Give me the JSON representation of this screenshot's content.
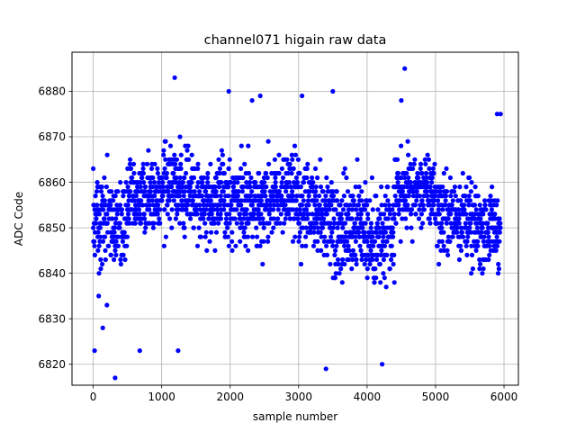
{
  "chart_data": {
    "type": "scatter",
    "title": "channel071 higain raw data",
    "xlabel": "sample number",
    "ylabel": "ADC Code",
    "xlim": [
      -310,
      6210
    ],
    "ylim": [
      6815.4,
      6888.6
    ],
    "xticks": [
      "0",
      "1000",
      "2000",
      "3000",
      "4000",
      "5000",
      "6000"
    ],
    "xtick_values": [
      0,
      1000,
      2000,
      3000,
      4000,
      5000,
      6000
    ],
    "yticks": [
      "6820",
      "6830",
      "6840",
      "6850",
      "6860",
      "6870",
      "6880"
    ],
    "ytick_values": [
      6820,
      6830,
      6840,
      6850,
      6860,
      6870,
      6880
    ],
    "grid": true,
    "marker_color": "#0000ff",
    "series": [
      {
        "name": "",
        "points": [
          [
            0,
            6863
          ],
          [
            20,
            6823
          ],
          [
            80,
            6835
          ],
          [
            140,
            6828
          ],
          [
            200,
            6833
          ],
          [
            320,
            6817
          ],
          [
            680,
            6823
          ],
          [
            1190,
            6883
          ],
          [
            1240,
            6823
          ],
          [
            1980,
            6880
          ],
          [
            2320,
            6878
          ],
          [
            2440,
            6879
          ],
          [
            3050,
            6879
          ],
          [
            3400,
            6819
          ],
          [
            3500,
            6880
          ],
          [
            4220,
            6820
          ],
          [
            4550,
            6885
          ],
          [
            4500,
            6878
          ],
          [
            5900,
            6875
          ],
          [
            5950,
            6875
          ]
        ],
        "segments": [
          {
            "x": [
              0,
              500
            ],
            "center": 6851,
            "spread": 9
          },
          {
            "x": [
              500,
              1000
            ],
            "center": 6857,
            "spread": 7
          },
          {
            "x": [
              1000,
              1500
            ],
            "center": 6859,
            "spread": 8
          },
          {
            "x": [
              1500,
              2000
            ],
            "center": 6856,
            "spread": 8
          },
          {
            "x": [
              2000,
              2500
            ],
            "center": 6855,
            "spread": 8
          },
          {
            "x": [
              2500,
              3000
            ],
            "center": 6857,
            "spread": 8
          },
          {
            "x": [
              3000,
              3500
            ],
            "center": 6853,
            "spread": 9
          },
          {
            "x": [
              3500,
              4000
            ],
            "center": 6851,
            "spread": 10
          },
          {
            "x": [
              4000,
              4400
            ],
            "center": 6847,
            "spread": 10
          },
          {
            "x": [
              4400,
              5000
            ],
            "center": 6858,
            "spread": 7
          },
          {
            "x": [
              5000,
              5500
            ],
            "center": 6853,
            "spread": 8
          },
          {
            "x": [
              5500,
              5950
            ],
            "center": 6850,
            "spread": 8
          }
        ]
      }
    ]
  }
}
